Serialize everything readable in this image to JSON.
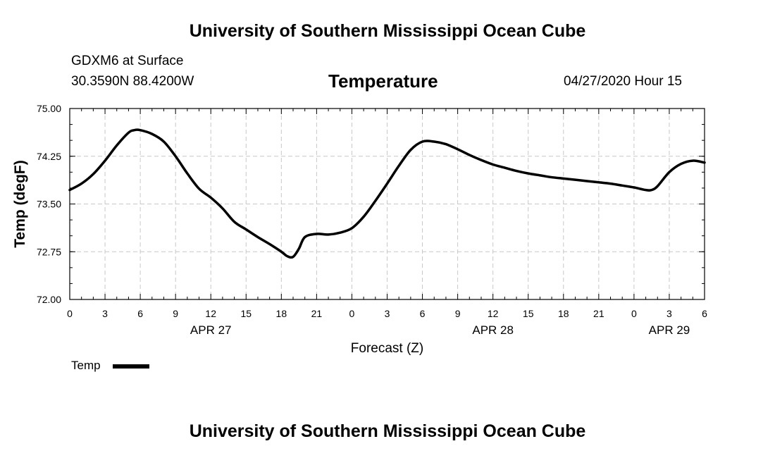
{
  "header": {
    "top_title": "University of Southern Mississippi Ocean Cube",
    "station": "GDXM6 at Surface",
    "coords": "30.3590N 88.4200W",
    "valid_time": "04/27/2020 Hour 15",
    "bottom_title": "University of Southern Mississippi Ocean Cube"
  },
  "legend": {
    "label": "Temp"
  },
  "chart_data": {
    "type": "line",
    "title": "Temperature",
    "xlabel": "Forecast (Z)",
    "ylabel": "Temp (degF)",
    "xlim": [
      0,
      54
    ],
    "ylim": [
      72.0,
      75.0
    ],
    "grid": true,
    "legend_position": "bottom-left",
    "x_ticks": [
      0,
      3,
      6,
      9,
      12,
      15,
      18,
      21,
      24,
      27,
      30,
      33,
      36,
      39,
      42,
      45,
      48,
      51,
      54
    ],
    "x_tick_labels": [
      "0",
      "3",
      "6",
      "9",
      "12",
      "15",
      "18",
      "21",
      "0",
      "3",
      "6",
      "9",
      "12",
      "15",
      "18",
      "21",
      "0",
      "3",
      "6"
    ],
    "y_ticks": [
      72.0,
      72.75,
      73.5,
      74.25,
      75.0
    ],
    "y_tick_labels": [
      "72.00",
      "72.75",
      "73.50",
      "74.25",
      "75.00"
    ],
    "date_labels": [
      {
        "x": 12,
        "label": "APR 27"
      },
      {
        "x": 36,
        "label": "APR 28"
      },
      {
        "x": 51,
        "label": "APR 29"
      }
    ],
    "series": [
      {
        "name": "Temp",
        "x": [
          0,
          1,
          2,
          3,
          4,
          5,
          5.5,
          6,
          7,
          8,
          9,
          10,
          11,
          12,
          13,
          14,
          15,
          16,
          17,
          18,
          18.5,
          19,
          19.5,
          20,
          21,
          22,
          23,
          24,
          25,
          26,
          27,
          28,
          29,
          30,
          31,
          32,
          33,
          34,
          35,
          36,
          37,
          38,
          39,
          40,
          41,
          42,
          43,
          44,
          45,
          46,
          47,
          48,
          49,
          49.5,
          50,
          51,
          52,
          53,
          54
        ],
        "values": [
          73.72,
          73.82,
          73.97,
          74.18,
          74.42,
          74.62,
          74.66,
          74.66,
          74.6,
          74.48,
          74.25,
          73.98,
          73.74,
          73.6,
          73.43,
          73.22,
          73.1,
          72.98,
          72.87,
          72.75,
          72.68,
          72.67,
          72.8,
          72.98,
          73.03,
          73.02,
          73.05,
          73.12,
          73.3,
          73.55,
          73.82,
          74.1,
          74.35,
          74.48,
          74.48,
          74.44,
          74.36,
          74.27,
          74.19,
          74.12,
          74.07,
          74.02,
          73.98,
          73.95,
          73.92,
          73.9,
          73.88,
          73.86,
          73.84,
          73.82,
          73.79,
          73.76,
          73.72,
          73.72,
          73.78,
          74.0,
          74.13,
          74.18,
          74.15
        ]
      }
    ]
  }
}
